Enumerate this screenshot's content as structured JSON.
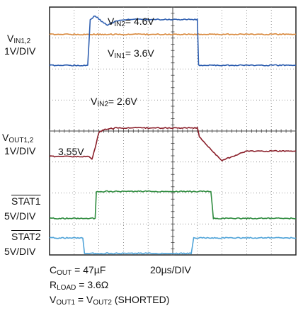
{
  "chart_data": {
    "type": "line",
    "xlabel": "",
    "ylabel": "",
    "time_per_div": "20µs/DIV",
    "divisions": {
      "x": 10,
      "y": 8
    },
    "grid": true,
    "series": [
      {
        "name": "VIN1",
        "color": "#d98a3f",
        "points": [
          [
            0,
            7.12
          ],
          [
            10,
            7.12
          ]
        ]
      },
      {
        "name": "VIN2",
        "color": "#2f5fb0",
        "points": [
          [
            0,
            6.12
          ],
          [
            1.55,
            6.12
          ],
          [
            1.65,
            7.6
          ],
          [
            1.85,
            7.72
          ],
          [
            2.1,
            7.55
          ],
          [
            2.35,
            7.42
          ],
          [
            2.6,
            7.52
          ],
          [
            3.0,
            7.6
          ],
          [
            4.0,
            7.6
          ],
          [
            5.5,
            7.6
          ],
          [
            6.0,
            7.6
          ],
          [
            6.05,
            6.12
          ],
          [
            10,
            6.12
          ]
        ]
      },
      {
        "name": "VOUT",
        "color": "#8a1f2a",
        "points": [
          [
            0,
            3.18
          ],
          [
            1.6,
            3.18
          ],
          [
            1.72,
            3.1
          ],
          [
            1.8,
            3.3
          ],
          [
            2.0,
            3.95
          ],
          [
            2.2,
            4.05
          ],
          [
            2.7,
            4.1
          ],
          [
            6.0,
            4.1
          ],
          [
            6.08,
            3.82
          ],
          [
            6.6,
            3.35
          ],
          [
            7.0,
            3.05
          ],
          [
            7.5,
            3.2
          ],
          [
            8.0,
            3.35
          ],
          [
            10,
            3.35
          ]
        ]
      },
      {
        "name": "STAT1",
        "color": "#2e8b3e",
        "points": [
          [
            0,
            1.18
          ],
          [
            1.85,
            1.18
          ],
          [
            1.9,
            2.05
          ],
          [
            6.55,
            2.05
          ],
          [
            6.65,
            1.18
          ],
          [
            10,
            1.18
          ]
        ]
      },
      {
        "name": "STAT2",
        "color": "#4fa3d8",
        "points": [
          [
            0,
            0.55
          ],
          [
            1.35,
            0.55
          ],
          [
            1.42,
            0.05
          ],
          [
            5.75,
            0.05
          ],
          [
            5.85,
            0.55
          ],
          [
            10,
            0.55
          ]
        ]
      }
    ],
    "annotations": {
      "vin2_high": "= 4.6V",
      "vin1": "= 3.6V",
      "vin2_low": "= 2.6V",
      "vout_level": "3.55V"
    }
  },
  "labels": {
    "vin_axis_main": "V",
    "vin_axis_sub": "IN1,2",
    "vin_axis_scale": "1V/DIV",
    "vout_axis_main": "V",
    "vout_axis_sub": "OUT1,2",
    "vout_axis_scale": "1V/DIV",
    "stat1_name": "STAT1",
    "stat1_scale": "5V/DIV",
    "stat2_name": "STAT2",
    "stat2_scale": "5V/DIV",
    "ann_v": "V",
    "ann_in2": "IN2",
    "ann_in1": "IN1"
  },
  "footer": {
    "cout_main": "C",
    "cout_sub": "OUT",
    "cout_value": " = 47µF",
    "timebase": "20µs/DIV",
    "rload_main": "R",
    "rload_sub": "LOAD",
    "rload_value": " = 3.6Ω",
    "vout1_main": "V",
    "vout1_sub": "OUT1",
    "vout_eq": " = V",
    "vout2_sub": "OUT2",
    "vout_tail": " (SHORTED)"
  }
}
